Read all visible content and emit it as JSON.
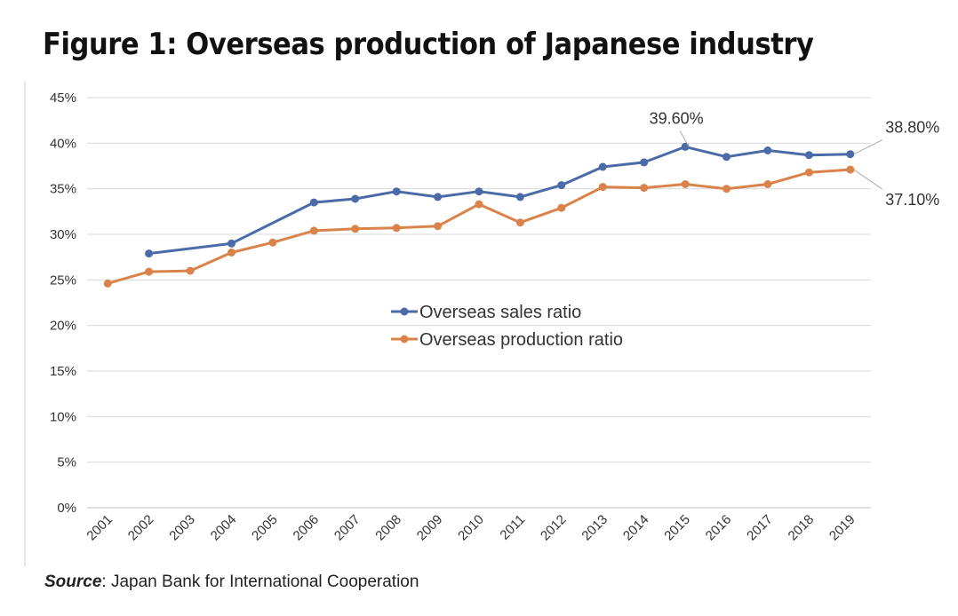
{
  "title": "Figure 1: Overseas production of Japanese industry",
  "source": {
    "label": "Source",
    "text": ": Japan Bank for International Cooperation"
  },
  "chart_data": {
    "type": "line",
    "categories": [
      "2001",
      "2002",
      "2003",
      "2004",
      "2005",
      "2006",
      "2007",
      "2008",
      "2009",
      "2010",
      "2011",
      "2012",
      "2013",
      "2014",
      "2015",
      "2016",
      "2017",
      "2018",
      "2019"
    ],
    "ylim": [
      0,
      45
    ],
    "yticks": [
      "0%",
      "5%",
      "10%",
      "15%",
      "20%",
      "25%",
      "30%",
      "35%",
      "40%",
      "45%"
    ],
    "grid": true,
    "legend_position": "center",
    "series": [
      {
        "name": "Overseas sales ratio",
        "color": "#4a6aa8",
        "values": [
          null,
          27.9,
          null,
          29.0,
          null,
          33.5,
          33.9,
          34.7,
          34.1,
          34.7,
          34.1,
          35.4,
          37.4,
          37.9,
          39.6,
          38.5,
          39.2,
          38.7,
          38.8
        ]
      },
      {
        "name": "Overseas production ratio",
        "color": "#d9834a",
        "values": [
          24.6,
          25.9,
          26.0,
          28.0,
          29.1,
          30.4,
          30.6,
          30.7,
          30.9,
          33.3,
          31.3,
          32.9,
          35.2,
          35.1,
          35.5,
          35.0,
          35.5,
          36.8,
          37.1
        ]
      }
    ],
    "annotations": [
      {
        "text": "39.60%",
        "series": 0,
        "category": "2015"
      },
      {
        "text": "38.80%",
        "series": 0,
        "category": "2019"
      },
      {
        "text": "37.10%",
        "series": 1,
        "category": "2019"
      }
    ]
  }
}
